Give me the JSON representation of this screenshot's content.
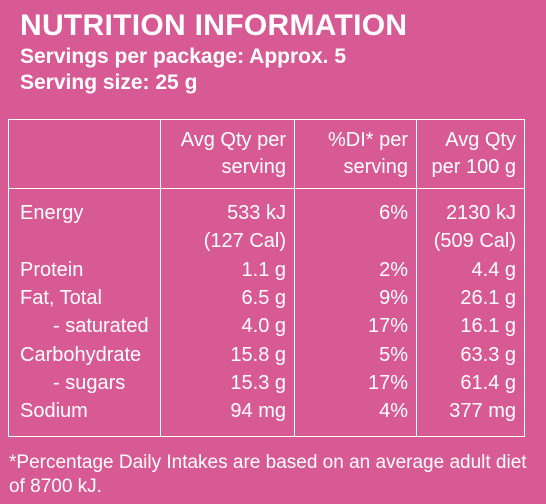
{
  "header": {
    "title": "NUTRITION INFORMATION",
    "servings": "Servings per package: Approx. 5",
    "serving_size": "Serving size: 25 g"
  },
  "table": {
    "columns": [
      "",
      "Avg Qty per serving",
      "%DI* per serving",
      "Avg Qty per 100 g"
    ],
    "col_lines": {
      "per_serving": [
        "Avg Qty per",
        "serving"
      ],
      "di": [
        "%DI* per",
        "serving"
      ],
      "per_100g": [
        "Avg Qty",
        "per 100 g"
      ]
    },
    "rows": [
      {
        "label": "Energy",
        "per_serving": "533 kJ",
        "per_serving_2": "(127 Cal)",
        "di": "6%",
        "per_100g": "2130 kJ",
        "per_100g_2": "(509 Cal)"
      },
      {
        "label": "Protein",
        "per_serving": "1.1 g",
        "di": "2%",
        "per_100g": "4.4 g"
      },
      {
        "label": "Fat, Total",
        "per_serving": "6.5 g",
        "di": "9%",
        "per_100g": "26.1 g"
      },
      {
        "label": "- saturated",
        "per_serving": "4.0 g",
        "di": "17%",
        "per_100g": "16.1 g"
      },
      {
        "label": "Carbohydrate",
        "per_serving": "15.8 g",
        "di": "5%",
        "per_100g": "63.3 g"
      },
      {
        "label": "- sugars",
        "per_serving": "15.3 g",
        "di": "17%",
        "per_100g": "61.4 g"
      },
      {
        "label": "Sodium",
        "per_serving": "94 mg",
        "di": "4%",
        "per_100g": "377 mg"
      }
    ]
  },
  "footnote": "*Percentage Daily Intakes are based on an average adult diet of 8700 kJ.",
  "colors": {
    "background": "#d85a94",
    "text": "#ffffff"
  }
}
